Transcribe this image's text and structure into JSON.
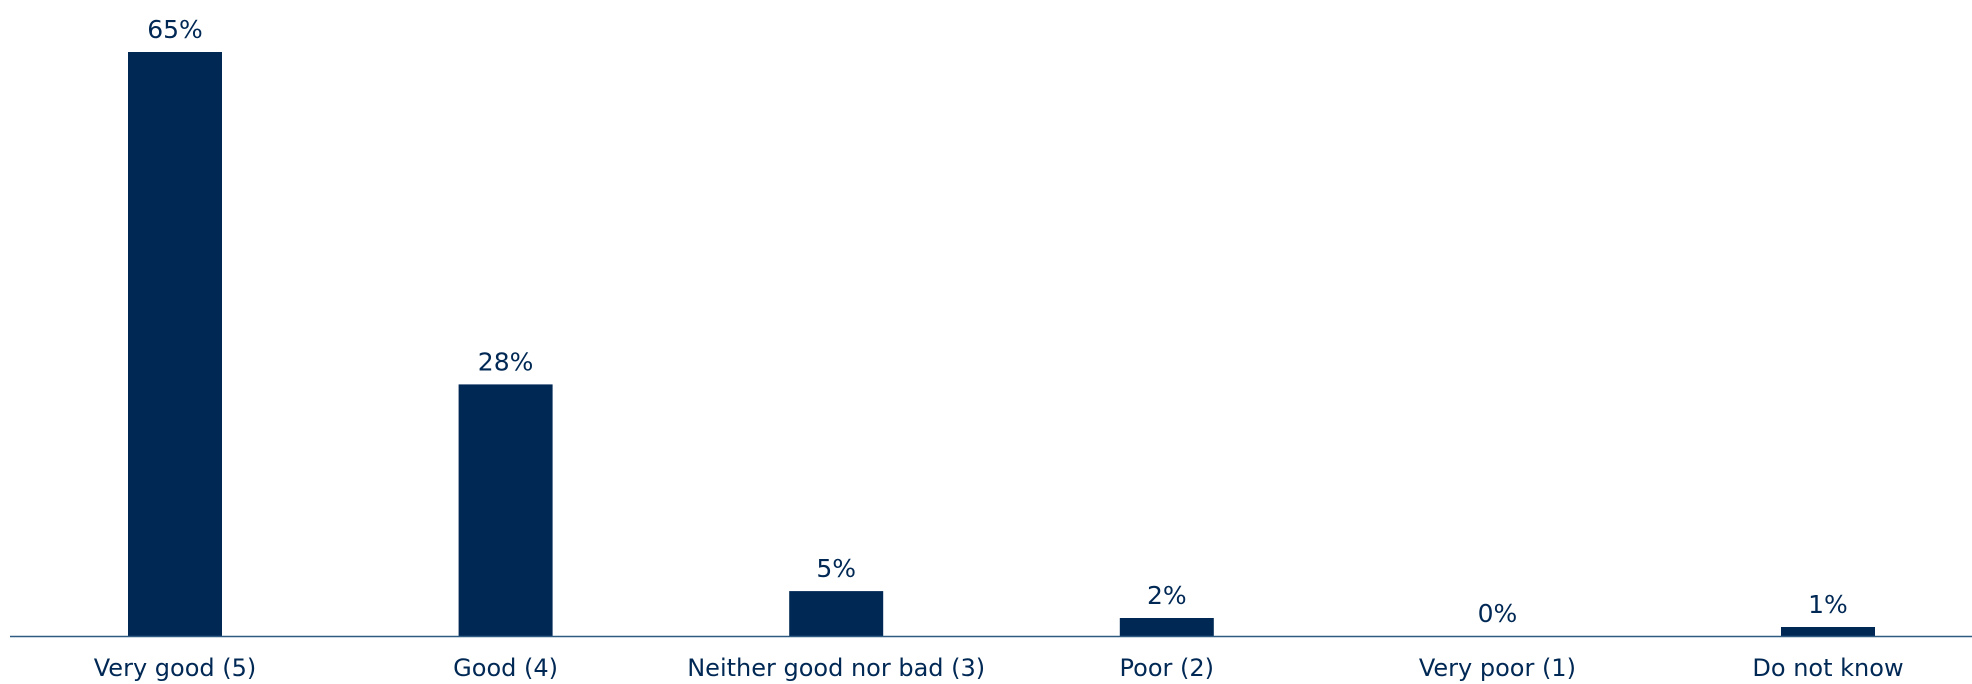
{
  "chart_data": {
    "type": "bar",
    "categories": [
      "Very good (5)",
      "Good (4)",
      "Neither good nor bad (3)",
      "Poor (2)",
      "Very poor (1)",
      "Do not know"
    ],
    "values": [
      65,
      28,
      5,
      2,
      0,
      1
    ],
    "value_labels": [
      "65%",
      "28%",
      "5%",
      "2%",
      "0%",
      "1%"
    ],
    "title": "",
    "xlabel": "",
    "ylabel": "",
    "ylim": [
      0,
      70
    ],
    "grid": false,
    "legend": "none",
    "colors": {
      "bar": "#002855",
      "axis": "#2f5b82",
      "text": "#002855"
    }
  }
}
